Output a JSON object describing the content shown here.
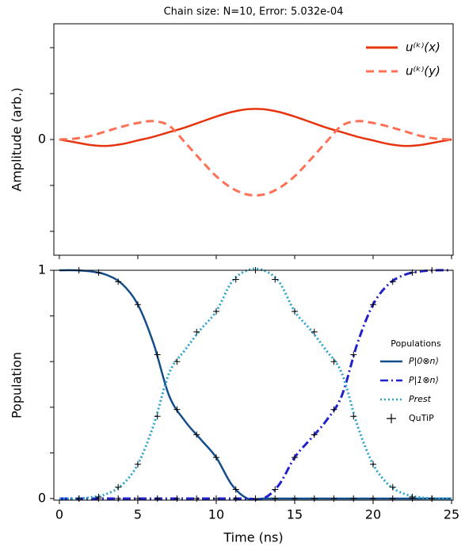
{
  "chart_data": [
    {
      "type": "line",
      "title": "Chain size: N=10, Error: 5.032e-04",
      "ylabel": "Amplitude (arb.)",
      "x": [
        0,
        1,
        2,
        3,
        4,
        5,
        6,
        7,
        8,
        9,
        10,
        11,
        12,
        13,
        14,
        15,
        16,
        17,
        18,
        19,
        20,
        21,
        22,
        23,
        24,
        25
      ],
      "series": [
        {
          "name": "u⁽ᵏ⁾(x)",
          "color": "#e8340e",
          "linestyle": "solid",
          "values": [
            0,
            -0.03,
            -0.06,
            -0.07,
            -0.05,
            -0.01,
            0.03,
            0.08,
            0.13,
            0.19,
            0.25,
            0.3,
            0.33,
            0.33,
            0.3,
            0.25,
            0.19,
            0.13,
            0.08,
            0.03,
            -0.01,
            -0.05,
            -0.07,
            -0.06,
            -0.03,
            0
          ]
        },
        {
          "name": "u⁽ᵏ⁾(y)",
          "color": "#ff7055",
          "linestyle": "dashed",
          "values": [
            0,
            0.01,
            0.04,
            0.09,
            0.14,
            0.18,
            0.2,
            0.15,
            -0.03,
            -0.22,
            -0.4,
            -0.53,
            -0.6,
            -0.6,
            -0.53,
            -0.4,
            -0.22,
            -0.03,
            0.15,
            0.2,
            0.18,
            0.14,
            0.09,
            0.04,
            0.01,
            0
          ]
        }
      ],
      "xlim": [
        -0.35,
        25.1
      ],
      "ylim": [
        -1.26,
        1.26
      ],
      "xticks": [
        {
          "value": 0,
          "label": null
        },
        {
          "value": 5,
          "label": null
        },
        {
          "value": 10,
          "label": null
        },
        {
          "value": 15,
          "label": null
        },
        {
          "value": 20,
          "label": null
        },
        {
          "value": 25,
          "label": null
        }
      ],
      "yticks": [
        {
          "value": -1,
          "label": null
        },
        {
          "value": -0.5,
          "label": null
        },
        0,
        {
          "value": 0.5,
          "label": null
        },
        {
          "value": 1,
          "label": null
        }
      ],
      "legend": "upper right"
    },
    {
      "type": "line",
      "xlabel": "Time (ns)",
      "ylabel": "Population",
      "legend_title": "Populations",
      "x": [
        0,
        1,
        2,
        3,
        4,
        5,
        6,
        7,
        8,
        9,
        10,
        11,
        12,
        13,
        14,
        15,
        16,
        17,
        18,
        19,
        20,
        21,
        22,
        23,
        24,
        25
      ],
      "series": [
        {
          "name": "P|0⊗n⟩",
          "color": "#134e8a",
          "linestyle": "solid",
          "values": [
            1,
            1,
            0.995,
            0.98,
            0.94,
            0.85,
            0.68,
            0.45,
            0.34,
            0.26,
            0.18,
            0.06,
            0,
            0,
            0,
            0,
            0,
            0,
            0,
            0,
            0,
            0,
            0,
            0,
            0,
            0
          ]
        },
        {
          "name": "P|1⊗n⟩",
          "color": "#2222cc",
          "linestyle": "dashdot",
          "values": [
            0,
            0,
            0,
            0,
            0,
            0,
            0,
            0,
            0,
            0,
            0,
            0,
            0,
            0,
            0.06,
            0.18,
            0.26,
            0.34,
            0.45,
            0.68,
            0.85,
            0.94,
            0.98,
            0.995,
            1,
            1
          ]
        },
        {
          "name": "Prest",
          "color": "#2aa4cf",
          "linestyle": "dotted",
          "values": [
            0,
            0,
            0.005,
            0.02,
            0.06,
            0.15,
            0.32,
            0.55,
            0.65,
            0.74,
            0.82,
            0.95,
            1,
            1,
            0.95,
            0.82,
            0.74,
            0.65,
            0.55,
            0.32,
            0.15,
            0.06,
            0.02,
            0.005,
            0,
            0
          ]
        }
      ],
      "markers": {
        "name": "QuTiP",
        "color": "#000000",
        "x": [
          1.25,
          2.5,
          3.75,
          5,
          6.25,
          7.5,
          8.75,
          10,
          11.25,
          12.5,
          13.75,
          15,
          16.25,
          17.5,
          18.75,
          20,
          21.25,
          22.5,
          23.75
        ],
        "values": [
          [
            1,
            0.99,
            0.95,
            0.85,
            0.63,
            0.39,
            0.28,
            0.18,
            0.04,
            0,
            0,
            0,
            0,
            0,
            0,
            0,
            0,
            0,
            0
          ],
          [
            0,
            0,
            0,
            0,
            0,
            0,
            0,
            0,
            0,
            0,
            0.04,
            0.18,
            0.28,
            0.39,
            0.63,
            0.85,
            0.95,
            0.99,
            1
          ],
          [
            0,
            0.007,
            0.05,
            0.15,
            0.36,
            0.6,
            0.73,
            0.82,
            0.96,
            1,
            0.96,
            0.82,
            0.73,
            0.6,
            0.36,
            0.15,
            0.05,
            0.007,
            0
          ]
        ]
      },
      "xlim": [
        -0.35,
        25.1
      ],
      "ylim": [
        -0.007,
        1.0
      ],
      "xticks": [
        0,
        5,
        10,
        15,
        20,
        25
      ],
      "yticks": [
        0,
        {
          "value": 0.2,
          "label": null
        },
        {
          "value": 0.4,
          "label": null
        },
        {
          "value": 0.6,
          "label": null
        },
        {
          "value": 0.8,
          "label": null
        },
        1
      ],
      "legend": "center right"
    }
  ]
}
